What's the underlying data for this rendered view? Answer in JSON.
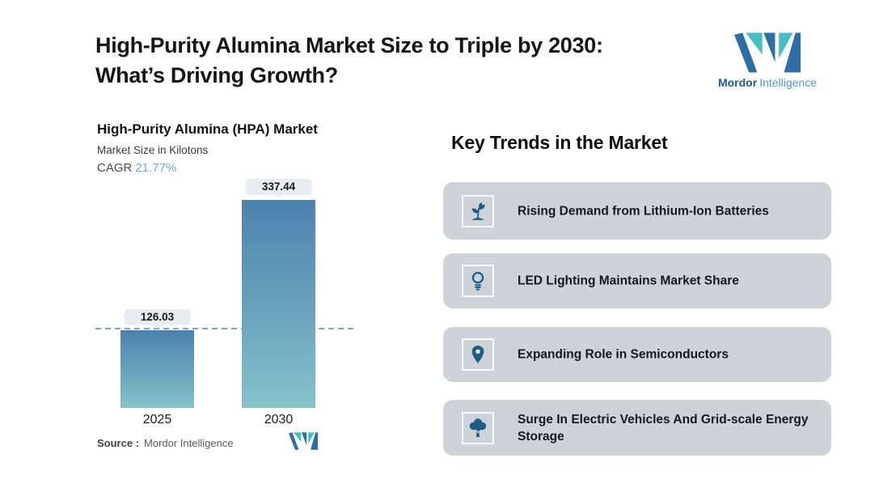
{
  "header": {
    "title": "High-Purity Alumina Market Size to Triple by 2030:\nWhat’s Driving Growth?"
  },
  "brand": {
    "name_bold": "Mordor",
    "name_light": "Intelligence",
    "logo_dark_blue": "#2e6da6",
    "logo_teal": "#47bec6"
  },
  "chart": {
    "title": "High-Purity Alumina (HPA) Market",
    "subtitle": "Market Size in Kilotons",
    "cagr_label": "CAGR",
    "cagr_value": "21.77%",
    "source_label": "Source :",
    "source_value": "Mordor Intelligence"
  },
  "chart_data": {
    "type": "bar",
    "categories": [
      "2025",
      "2030"
    ],
    "values": [
      126.03,
      337.44
    ],
    "data_labels": [
      "126.03",
      "337.44"
    ],
    "title": "High-Purity Alumina (HPA) Market",
    "xlabel": "",
    "ylabel": "Market Size in Kilotons",
    "unit": "Kilotons",
    "cagr_percent": 21.77,
    "reference_line_at": 126.03,
    "grid": false,
    "legend": "none",
    "bar_gradient_top": "#4d82ae",
    "bar_gradient_bottom": "#86c3ca",
    "reference_line_color": "#6496c4",
    "label_badge_bg": "#e7eef1"
  },
  "trends": {
    "heading": "Key Trends in the Market",
    "card_bg": "#ced3da",
    "icon_color": "#1d5e87",
    "items": [
      {
        "icon": "sprout-icon",
        "label": "Rising Demand from Lithium-Ion Batteries"
      },
      {
        "icon": "lightbulb-icon",
        "label": "LED Lighting Maintains Market Share"
      },
      {
        "icon": "location-pin-icon",
        "label": "Expanding Role in Semiconductors"
      },
      {
        "icon": "tree-icon",
        "label": "Surge In Electric Vehicles And Grid-scale Energy Storage"
      }
    ]
  }
}
